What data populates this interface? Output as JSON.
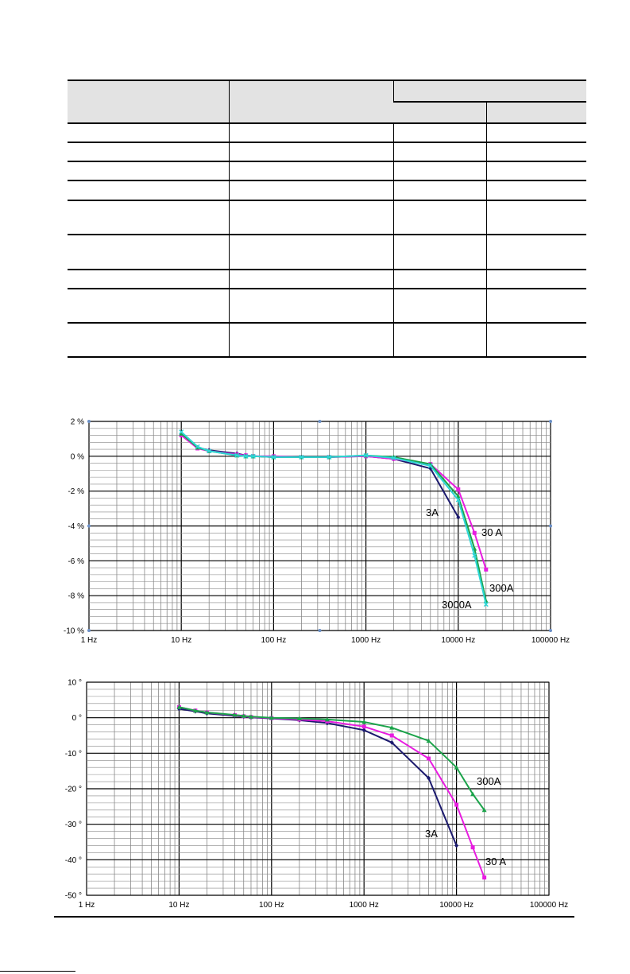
{
  "table": {
    "header_cells": [
      "",
      "",
      ""
    ],
    "subheader_cells": [
      "",
      ""
    ],
    "rows": [
      [
        "",
        "",
        "",
        ""
      ],
      [
        "",
        "",
        "",
        ""
      ],
      [
        "",
        "",
        "",
        ""
      ],
      [
        "",
        "",
        "",
        ""
      ],
      [
        "",
        "",
        "",
        ""
      ],
      [
        "",
        "",
        "",
        ""
      ],
      [
        "",
        "",
        "",
        ""
      ],
      [
        "",
        "",
        "",
        ""
      ],
      [
        "",
        "",
        "",
        ""
      ]
    ]
  },
  "chart_data": [
    {
      "type": "line",
      "x_scale": "log",
      "xlim": [
        1,
        100000
      ],
      "ylim": [
        -10,
        2
      ],
      "x_tick_labels": [
        "1 Hz",
        "10 Hz",
        "100 Hz",
        "1000 Hz",
        "10000 Hz",
        "100000 Hz"
      ],
      "x_tick_values": [
        1,
        10,
        100,
        1000,
        10000,
        100000
      ],
      "y_tick_labels": [
        "2 %",
        "0 %",
        "-2 %",
        "-4 %",
        "-6 %",
        "-8 %",
        "-10 %"
      ],
      "y_tick_values": [
        2,
        0,
        -2,
        -4,
        -6,
        -8,
        -10
      ],
      "grid": true,
      "series": [
        {
          "name": "3A",
          "color": "#1c1a6e",
          "marker": "diamond",
          "x": [
            10,
            15,
            20,
            40,
            50,
            60,
            100,
            200,
            400,
            1000,
            2000,
            5000,
            10000
          ],
          "y": [
            1.3,
            0.5,
            0.35,
            0.15,
            0.05,
            0.0,
            -0.05,
            -0.05,
            -0.05,
            0.0,
            -0.15,
            -0.7,
            -3.5
          ]
        },
        {
          "name": "30 A",
          "color": "#e81ce0",
          "marker": "square",
          "x": [
            10,
            15,
            20,
            40,
            50,
            60,
            100,
            200,
            400,
            1000,
            2000,
            5000,
            10000,
            15000,
            20000
          ],
          "y": [
            1.2,
            0.45,
            0.3,
            0.1,
            0.05,
            0.0,
            0.0,
            -0.05,
            -0.05,
            0.0,
            -0.15,
            -0.45,
            -1.9,
            -4.4,
            -6.5
          ]
        },
        {
          "name": "300A",
          "color": "#1ba34a",
          "marker": "triangle",
          "x": [
            10,
            15,
            20,
            40,
            50,
            60,
            100,
            200,
            400,
            1000,
            2000,
            5000,
            10000,
            15000,
            20000
          ],
          "y": [
            1.3,
            0.5,
            0.3,
            0.05,
            0.0,
            0.0,
            -0.05,
            -0.05,
            -0.05,
            0.05,
            -0.05,
            -0.45,
            -2.3,
            -5.3,
            -8.3
          ]
        },
        {
          "name": "3000A",
          "color": "#2ed6d6",
          "marker": "x",
          "x": [
            10,
            15,
            20,
            40,
            50,
            60,
            100,
            200,
            400,
            1000,
            2000,
            5000,
            10000,
            15000,
            20000
          ],
          "y": [
            1.4,
            0.55,
            0.3,
            0.05,
            0.0,
            0.0,
            -0.05,
            -0.05,
            -0.05,
            0.05,
            -0.1,
            -0.55,
            -2.5,
            -5.7,
            -8.5
          ]
        }
      ],
      "annotations": [
        "3A",
        "30 A",
        "300A",
        "3000A"
      ]
    },
    {
      "type": "line",
      "x_scale": "log",
      "xlim": [
        1,
        100000
      ],
      "ylim": [
        -50,
        10
      ],
      "x_tick_labels": [
        "1 Hz",
        "10 Hz",
        "100 Hz",
        "1000 Hz",
        "10000 Hz",
        "100000 Hz"
      ],
      "x_tick_values": [
        1,
        10,
        100,
        1000,
        10000,
        100000
      ],
      "y_tick_labels": [
        "10 °",
        "0 °",
        "-10 °",
        "-20 °",
        "-30 °",
        "-40 °",
        "-50 °"
      ],
      "y_tick_values": [
        10,
        0,
        -10,
        -20,
        -30,
        -40,
        -50
      ],
      "grid": true,
      "series": [
        {
          "name": "3A",
          "color": "#1c1a6e",
          "marker": "diamond",
          "x": [
            10,
            15,
            20,
            40,
            50,
            60,
            100,
            200,
            400,
            1000,
            2000,
            5000,
            10000
          ],
          "y": [
            2.5,
            1.8,
            1.2,
            0.5,
            0.3,
            0.1,
            -0.2,
            -0.7,
            -1.5,
            -3.5,
            -7,
            -17,
            -36
          ]
        },
        {
          "name": "30 A",
          "color": "#e81ce0",
          "marker": "square",
          "x": [
            10,
            15,
            20,
            40,
            50,
            60,
            100,
            200,
            400,
            1000,
            2000,
            5000,
            10000,
            15000,
            20000
          ],
          "y": [
            3,
            2,
            1.5,
            0.7,
            0.4,
            0.2,
            -0.1,
            -0.5,
            -1,
            -2.5,
            -5,
            -11.5,
            -24.5,
            -36.5,
            -45
          ]
        },
        {
          "name": "300A",
          "color": "#1ba34a",
          "marker": "triangle",
          "x": [
            10,
            15,
            20,
            40,
            50,
            60,
            100,
            200,
            400,
            1000,
            2000,
            5000,
            10000,
            15000,
            20000
          ],
          "y": [
            3,
            2,
            1.5,
            0.8,
            0.5,
            0.3,
            0.0,
            -0.2,
            -0.5,
            -1.2,
            -2.8,
            -6.5,
            -14,
            -21.5,
            -26
          ]
        }
      ],
      "annotations": [
        "300A",
        "3A",
        "30 A"
      ]
    }
  ]
}
